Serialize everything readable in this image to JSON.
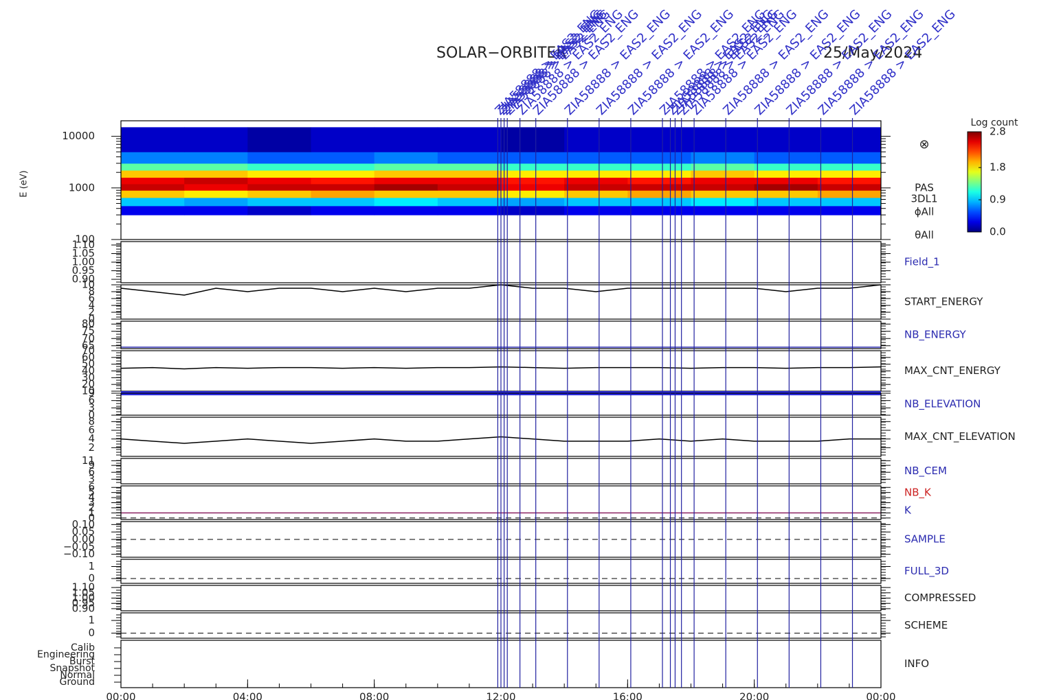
{
  "title": "SOLAR−ORBITER",
  "date": "25/May/2024",
  "x_axis": {
    "xlim": [
      0,
      24
    ],
    "xticks": [
      {
        "value": 0,
        "label": "00:00"
      },
      {
        "value": 4,
        "label": "04:00"
      },
      {
        "value": 8,
        "label": "08:00"
      },
      {
        "value": 12,
        "label": "12:00"
      },
      {
        "value": 16,
        "label": "16:00"
      },
      {
        "value": 20,
        "label": "20:00"
      },
      {
        "value": 24,
        "label": "00:00"
      }
    ]
  },
  "events": [
    {
      "time": 11.9,
      "label": "ZIA58888 > EAS2_ENG"
    },
    {
      "time": 12.0,
      "label": "ZIA58888 > EAS2_ENG"
    },
    {
      "time": 12.1,
      "label": "ZIA58888 > EAS2_ENG"
    },
    {
      "time": 12.2,
      "label": "ZIA58888 > EAS2_ENG"
    },
    {
      "time": 12.6,
      "label": "ZIA58888 > EAS2_ENG"
    },
    {
      "time": 13.1,
      "label": "ZIA58888 > EAS2_ENG"
    },
    {
      "time": 14.1,
      "label": "ZIA58888 > EAS2_ENG"
    },
    {
      "time": 15.1,
      "label": "ZIA58888 > EAS2_ENG"
    },
    {
      "time": 16.1,
      "label": "ZIA58888 > EAS2_ENG"
    },
    {
      "time": 17.1,
      "label": "ZIA58888 > EAS2_ENG"
    },
    {
      "time": 17.35,
      "label": "ZIA58888 > EAS2_ENG"
    },
    {
      "time": 17.5,
      "label": "ZIA58888 > EAS2_ENG"
    },
    {
      "time": 17.7,
      "label": "ZIA58888 > EAS2_ENG"
    },
    {
      "time": 18.1,
      "label": "ZIA58888 > EAS2_ENG"
    },
    {
      "time": 19.1,
      "label": "ZIA58888 > EAS2_ENG"
    },
    {
      "time": 20.1,
      "label": "ZIA58888 > EAS2_ENG"
    },
    {
      "time": 21.1,
      "label": "ZIA58888 > EAS2_ENG"
    },
    {
      "time": 22.1,
      "label": "ZIA58888 > EAS2_ENG"
    },
    {
      "time": 23.1,
      "label": "ZIA58888 > EAS2_ENG"
    }
  ],
  "chart_data": [
    {
      "type": "heatmap",
      "y_label": "E (eV)",
      "log": true,
      "ylim": [
        100,
        20000
      ],
      "yticks": [
        100,
        1000,
        10000
      ],
      "labels": [
        "PAS",
        "3DL1",
        "ϕAll",
        "θAll"
      ],
      "symbol": "⊗",
      "colorbar": {
        "title": "Log count",
        "clim": [
          0,
          2.8
        ],
        "cticks": [
          {
            "value": 0,
            "label": "0.0"
          },
          {
            "value": 0.9,
            "label": "0.9"
          },
          {
            "value": 1.8,
            "label": "1.8"
          },
          {
            "value": 2.8,
            "label": "2.8"
          }
        ]
      },
      "xbins": [
        0,
        2,
        4,
        6,
        8,
        10,
        12,
        14,
        16,
        18,
        20,
        22,
        24
      ],
      "ybins": [
        300,
        450,
        650,
        900,
        1200,
        1600,
        2200,
        3000,
        5000,
        15000
      ],
      "values": [
        [
          0.3,
          0.3,
          0.2,
          0.3,
          0.3,
          0.3,
          0.2,
          0.3,
          0.3,
          0.3,
          0.3,
          0.3
        ],
        [
          0.9,
          0.8,
          0.9,
          0.9,
          1.0,
          0.9,
          0.8,
          0.9,
          0.9,
          1.0,
          0.9,
          0.9
        ],
        [
          1.9,
          1.8,
          1.9,
          2.0,
          1.9,
          1.9,
          1.8,
          1.9,
          2.0,
          1.9,
          1.9,
          2.0
        ],
        [
          2.6,
          2.5,
          2.6,
          2.6,
          2.7,
          2.6,
          2.5,
          2.6,
          2.6,
          2.6,
          2.7,
          2.6
        ],
        [
          2.5,
          2.6,
          2.5,
          2.4,
          2.5,
          2.5,
          2.4,
          2.5,
          2.4,
          2.5,
          2.5,
          2.4
        ],
        [
          1.9,
          1.9,
          1.8,
          1.8,
          1.9,
          1.9,
          1.8,
          1.8,
          1.8,
          1.9,
          1.8,
          1.8
        ],
        [
          1.3,
          1.3,
          1.2,
          1.2,
          1.3,
          1.3,
          1.2,
          1.2,
          1.2,
          1.3,
          1.2,
          1.2
        ],
        [
          0.7,
          0.7,
          0.6,
          0.6,
          0.7,
          0.6,
          0.6,
          0.6,
          0.6,
          0.7,
          0.6,
          0.6
        ],
        [
          0.2,
          0.2,
          0.1,
          0.2,
          0.2,
          0.2,
          0.1,
          0.2,
          0.2,
          0.2,
          0.2,
          0.2
        ]
      ]
    },
    {
      "type": "axis",
      "label": "Field_1",
      "label_color": "#2b2bb0",
      "ylim": [
        0.88,
        1.12
      ],
      "yticks": [
        {
          "value": 0.9,
          "label": "0.90"
        },
        {
          "value": 0.95,
          "label": "0.95"
        },
        {
          "value": 1.0,
          "label": "1.00"
        },
        {
          "value": 1.05,
          "label": "1.05"
        },
        {
          "value": 1.1,
          "label": "1.10"
        }
      ]
    },
    {
      "type": "line",
      "label": "START_ENERGY",
      "label_color": "#222222",
      "color": "#000000",
      "ylim": [
        0,
        10
      ],
      "yticks": [
        0,
        2,
        4,
        6,
        8,
        10
      ],
      "x": [
        0,
        1,
        2,
        3,
        4,
        5,
        6,
        7,
        8,
        9,
        10,
        11,
        12,
        13,
        14,
        15,
        16,
        17,
        18,
        19,
        20,
        21,
        22,
        23,
        24
      ],
      "values": [
        9,
        8,
        7,
        9,
        8,
        9,
        9,
        8,
        9,
        8,
        9,
        9,
        10,
        9,
        9,
        8,
        9,
        9,
        9,
        9,
        9,
        8,
        9,
        9,
        10
      ]
    },
    {
      "type": "line",
      "label": "NB_ENERGY",
      "label_color": "#2b2bb0",
      "color": "#2b2bb0",
      "ylim": [
        63,
        82
      ],
      "yticks": [
        65,
        70,
        75,
        80
      ],
      "x": [
        0,
        1,
        2,
        3,
        4,
        5,
        6,
        7,
        8,
        9,
        10,
        11,
        12,
        13,
        14,
        15,
        16,
        17,
        18,
        19,
        20,
        21,
        22,
        23,
        24
      ],
      "values": [
        64,
        64,
        64,
        64,
        64,
        64,
        64,
        64,
        64,
        64,
        64,
        64,
        64,
        64,
        64,
        64,
        64,
        64,
        64,
        64,
        64,
        64,
        64,
        64,
        64
      ]
    },
    {
      "type": "line",
      "label": "MAX_CNT_ENERGY",
      "label_color": "#222222",
      "color": "#000000",
      "ylim": [
        10,
        70
      ],
      "yticks": [
        10,
        20,
        30,
        40,
        50,
        60,
        70
      ],
      "x": [
        0,
        1,
        2,
        3,
        4,
        5,
        6,
        7,
        8,
        9,
        10,
        11,
        12,
        13,
        14,
        15,
        16,
        17,
        18,
        19,
        20,
        21,
        22,
        23,
        24
      ],
      "values": [
        44,
        45,
        43,
        45,
        44,
        45,
        45,
        44,
        45,
        44,
        45,
        45,
        46,
        45,
        44,
        45,
        45,
        45,
        44,
        45,
        45,
        44,
        45,
        45,
        46
      ]
    },
    {
      "type": "line",
      "label": "NB_ELEVATION",
      "label_color": "#2b2bb0",
      "color": "#2b2bdd",
      "width": 6,
      "ylim": [
        0,
        9
      ],
      "yticks": [
        0,
        3,
        6,
        9
      ],
      "x": [
        0,
        1,
        2,
        3,
        4,
        5,
        6,
        7,
        8,
        9,
        10,
        11,
        12,
        13,
        14,
        15,
        16,
        17,
        18,
        19,
        20,
        21,
        22,
        23,
        24
      ],
      "values": [
        9,
        9,
        9,
        9,
        9,
        9,
        9,
        9,
        9,
        9,
        9,
        9,
        9,
        9,
        9,
        9,
        9,
        9,
        9,
        9,
        9,
        9,
        9,
        9,
        9
      ]
    },
    {
      "type": "line",
      "label": "MAX_CNT_ELEVATION",
      "label_color": "#222222",
      "color": "#000000",
      "ylim": [
        0,
        9
      ],
      "yticks": [
        2,
        4,
        6,
        8
      ],
      "x": [
        0,
        1,
        2,
        3,
        4,
        5,
        6,
        7,
        8,
        9,
        10,
        11,
        12,
        13,
        14,
        15,
        16,
        17,
        18,
        19,
        20,
        21,
        22,
        23,
        24
      ],
      "values": [
        4,
        3.5,
        3,
        3.5,
        4,
        3.5,
        3,
        3.5,
        4,
        3.5,
        3.5,
        4,
        4.5,
        4,
        3.5,
        3.5,
        3.5,
        4,
        3.5,
        4,
        3.5,
        3.5,
        3.5,
        4,
        4
      ]
    },
    {
      "type": "axis",
      "label": "NB_CEM",
      "label_color": "#2b2bb0",
      "ylim": [
        1,
        12
      ],
      "yticks": [
        3,
        6,
        9,
        11
      ]
    },
    {
      "type": "line",
      "labels": [
        "NB_K",
        "K"
      ],
      "label_colors": [
        "#cc2222",
        "#2b2bb0"
      ],
      "color": "#8a2060",
      "ylim": [
        -0.3,
        6.3
      ],
      "yticks": [
        0,
        1,
        2,
        3,
        4,
        5,
        6
      ],
      "x": [
        0,
        1,
        2,
        3,
        4,
        5,
        6,
        7,
        8,
        9,
        10,
        11,
        12,
        13,
        14,
        15,
        16,
        17,
        18,
        19,
        20,
        21,
        22,
        23,
        24
      ],
      "values": [
        1,
        1,
        1,
        1,
        1,
        1,
        1,
        1,
        1,
        1,
        1,
        1,
        1,
        1,
        1,
        1,
        1,
        1,
        1,
        1,
        1,
        1,
        1,
        1,
        1
      ]
    },
    {
      "type": "axis",
      "label": "SAMPLE",
      "label_color": "#2b2bb0",
      "ylim": [
        -0.12,
        0.12
      ],
      "yticks": [
        {
          "value": -0.1,
          "label": "−0.10"
        },
        {
          "value": -0.05,
          "label": "−0.05"
        },
        {
          "value": 0,
          "label": "0.00"
        },
        {
          "value": 0.05,
          "label": "0.05"
        },
        {
          "value": 0.1,
          "label": "0.10"
        }
      ]
    },
    {
      "type": "axis",
      "label": "FULL_3D",
      "label_color": "#2b2bb0",
      "ylim": [
        -0.4,
        1.6
      ],
      "yticks": [
        0,
        1
      ]
    },
    {
      "type": "axis",
      "label": "COMPRESSED",
      "label_color": "#222222",
      "ylim": [
        0.88,
        1.12
      ],
      "yticks": [
        {
          "value": 0.9,
          "label": "0.90"
        },
        {
          "value": 0.95,
          "label": "0.95"
        },
        {
          "value": 1.0,
          "label": "1.00"
        },
        {
          "value": 1.05,
          "label": "1.05"
        },
        {
          "value": 1.1,
          "label": "1.10"
        }
      ]
    },
    {
      "type": "axis",
      "label": "SCHEME",
      "label_color": "#222222",
      "ylim": [
        -0.4,
        1.6
      ],
      "yticks": [
        0,
        1
      ]
    },
    {
      "type": "category",
      "label": "INFO",
      "label_color": "#222222",
      "categories": [
        "Ground",
        "Normal",
        "Snapshot",
        "Burst",
        "Engineering",
        "Calib"
      ]
    }
  ]
}
